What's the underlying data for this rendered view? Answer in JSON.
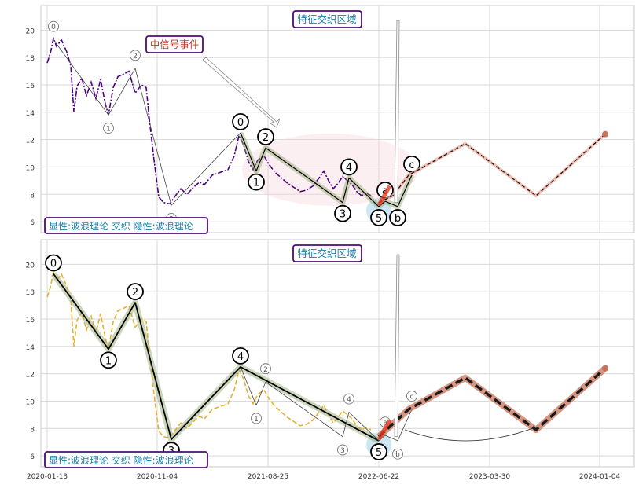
{
  "chart_data": [
    {
      "type": "line",
      "panel": "top",
      "ylim": [
        5.2,
        21.8
      ],
      "yticks": [
        6,
        8,
        10,
        12,
        14,
        16,
        18,
        20
      ],
      "grid": true,
      "series_color": "#4b0082",
      "price": [
        [
          0,
          17.6
        ],
        [
          4,
          18.3
        ],
        [
          8,
          19.4
        ],
        [
          12,
          18.8
        ],
        [
          18,
          19.3
        ],
        [
          25,
          18.4
        ],
        [
          30,
          17.4
        ],
        [
          34,
          14.0
        ],
        [
          38,
          15.9
        ],
        [
          44,
          16.5
        ],
        [
          50,
          15.2
        ],
        [
          56,
          16.2
        ],
        [
          62,
          15.0
        ],
        [
          68,
          16.4
        ],
        [
          74,
          14.6
        ],
        [
          78,
          13.8
        ],
        [
          84,
          15.8
        ],
        [
          90,
          16.6
        ],
        [
          98,
          16.8
        ],
        [
          104,
          17.0
        ],
        [
          112,
          15.4
        ],
        [
          120,
          16.0
        ],
        [
          126,
          15.8
        ],
        [
          130,
          13.5
        ],
        [
          136,
          10.5
        ],
        [
          142,
          7.8
        ],
        [
          148,
          7.4
        ],
        [
          156,
          7.3
        ],
        [
          162,
          7.8
        ],
        [
          170,
          8.4
        ],
        [
          178,
          8.0
        ],
        [
          186,
          8.5
        ],
        [
          194,
          8.9
        ],
        [
          200,
          8.7
        ],
        [
          210,
          9.4
        ],
        [
          220,
          9.6
        ],
        [
          230,
          9.8
        ],
        [
          238,
          10.8
        ],
        [
          244,
          12.3
        ],
        [
          250,
          11.6
        ],
        [
          256,
          10.4
        ],
        [
          262,
          9.8
        ],
        [
          268,
          10.5
        ],
        [
          276,
          10.8
        ],
        [
          282,
          10.2
        ],
        [
          290,
          9.6
        ],
        [
          298,
          9.2
        ],
        [
          306,
          8.8
        ],
        [
          314,
          8.5
        ],
        [
          322,
          8.2
        ],
        [
          330,
          8.3
        ],
        [
          338,
          8.6
        ],
        [
          346,
          9.2
        ],
        [
          352,
          9.7
        ],
        [
          358,
          9.0
        ],
        [
          364,
          8.4
        ],
        [
          370,
          8.8
        ],
        [
          376,
          9.3
        ],
        [
          382,
          9.0
        ],
        [
          388,
          8.7
        ],
        [
          394,
          8.2
        ],
        [
          400,
          7.9
        ],
        [
          406,
          8.1
        ],
        [
          412,
          7.9
        ]
      ],
      "projection": [
        [
          422,
          7.4
        ],
        [
          440,
          7.9
        ],
        [
          460,
          9.4
        ],
        [
          532,
          11.7
        ],
        [
          622,
          7.9
        ],
        [
          710,
          12.4
        ]
      ],
      "waves": [
        {
          "pts": [
            [
              8,
              19.3
            ],
            [
              78,
              13.8
            ],
            [
              112,
              17.2
            ],
            [
              158,
              7.2
            ],
            [
              246,
              12.5
            ]
          ],
          "labels": [
            "0",
            "1",
            "2",
            "3",
            ""
          ],
          "size": "small"
        },
        {
          "pts": [
            [
              246,
              12.5
            ],
            [
              266,
              9.7
            ],
            [
              278,
              11.4
            ],
            [
              376,
              7.4
            ],
            [
              384,
              9.2
            ],
            [
              422,
              7.1
            ]
          ],
          "labels": [
            "0",
            "1",
            "2",
            "3",
            "4",
            "5"
          ],
          "size": "big"
        },
        {
          "pts": [
            [
              422,
              7.1
            ],
            [
              430,
              7.5
            ],
            [
              446,
              7.1
            ],
            [
              464,
              9.4
            ]
          ],
          "labels": [
            "",
            "a",
            "b",
            "c"
          ],
          "size": "big"
        }
      ],
      "label_text": "显性:波浪理论 交织 隐性:波浪理论",
      "zone_label": "特征交织区域",
      "signal_label": "中信号事件"
    },
    {
      "type": "line",
      "panel": "bottom",
      "ylim": [
        5.2,
        21.8
      ],
      "yticks": [
        6,
        8,
        10,
        12,
        14,
        16,
        18,
        20
      ],
      "grid": true,
      "series_color": "#e8b02e",
      "price": [
        [
          0,
          17.6
        ],
        [
          4,
          18.3
        ],
        [
          8,
          19.4
        ],
        [
          12,
          18.8
        ],
        [
          18,
          19.3
        ],
        [
          25,
          18.4
        ],
        [
          30,
          17.4
        ],
        [
          34,
          14.0
        ],
        [
          38,
          15.9
        ],
        [
          44,
          16.5
        ],
        [
          50,
          15.2
        ],
        [
          56,
          16.2
        ],
        [
          62,
          15.0
        ],
        [
          68,
          16.4
        ],
        [
          74,
          14.6
        ],
        [
          78,
          13.8
        ],
        [
          84,
          15.8
        ],
        [
          90,
          16.6
        ],
        [
          98,
          16.8
        ],
        [
          104,
          17.0
        ],
        [
          112,
          15.4
        ],
        [
          120,
          16.0
        ],
        [
          126,
          15.8
        ],
        [
          130,
          13.5
        ],
        [
          136,
          10.5
        ],
        [
          142,
          7.8
        ],
        [
          148,
          7.4
        ],
        [
          156,
          7.3
        ],
        [
          162,
          7.8
        ],
        [
          170,
          8.4
        ],
        [
          178,
          8.0
        ],
        [
          186,
          8.5
        ],
        [
          194,
          8.9
        ],
        [
          200,
          8.7
        ],
        [
          210,
          9.4
        ],
        [
          220,
          9.6
        ],
        [
          230,
          9.8
        ],
        [
          238,
          10.8
        ],
        [
          244,
          12.3
        ],
        [
          250,
          11.6
        ],
        [
          256,
          10.4
        ],
        [
          262,
          9.8
        ],
        [
          268,
          10.5
        ],
        [
          276,
          10.8
        ],
        [
          282,
          10.2
        ],
        [
          290,
          9.6
        ],
        [
          298,
          9.2
        ],
        [
          306,
          8.8
        ],
        [
          314,
          8.5
        ],
        [
          322,
          8.2
        ],
        [
          330,
          8.3
        ],
        [
          338,
          8.6
        ],
        [
          346,
          9.2
        ],
        [
          352,
          9.7
        ],
        [
          358,
          9.0
        ],
        [
          364,
          8.4
        ],
        [
          370,
          8.8
        ],
        [
          376,
          9.3
        ],
        [
          382,
          9.0
        ],
        [
          388,
          8.7
        ],
        [
          394,
          8.2
        ],
        [
          400,
          7.9
        ],
        [
          406,
          8.1
        ],
        [
          412,
          7.9
        ]
      ],
      "projection": [
        [
          422,
          7.4
        ],
        [
          460,
          9.4
        ],
        [
          532,
          11.7
        ],
        [
          622,
          7.9
        ],
        [
          710,
          12.4
        ]
      ],
      "waves": [
        {
          "pts": [
            [
              8,
              19.3
            ],
            [
              78,
              13.8
            ],
            [
              112,
              17.2
            ],
            [
              158,
              7.2
            ],
            [
              246,
              12.5
            ],
            [
              422,
              7.1
            ]
          ],
          "labels": [
            "0",
            "1",
            "2",
            "3",
            "4",
            "5"
          ],
          "size": "big"
        },
        {
          "pts": [
            [
              246,
              12.5
            ],
            [
              266,
              9.7
            ],
            [
              278,
              11.4
            ],
            [
              376,
              7.4
            ],
            [
              384,
              9.2
            ],
            [
              422,
              7.1
            ]
          ],
          "labels": [
            "",
            "1",
            "2",
            "3",
            "4",
            ""
          ],
          "size": "small"
        },
        {
          "pts": [
            [
              422,
              7.1
            ],
            [
              430,
              7.5
            ],
            [
              446,
              7.1
            ],
            [
              464,
              9.4
            ]
          ],
          "labels": [
            "",
            "a",
            "b",
            "c"
          ],
          "size": "small"
        }
      ],
      "label_text": "显性:波浪理论 交织 隐性:波浪理论",
      "zone_label": "特征交织区域",
      "xticks": [
        {
          "x": 0,
          "label": "2020-01-13"
        },
        {
          "x": 140,
          "label": "2020-11-04"
        },
        {
          "x": 281,
          "label": "2021-08-25"
        },
        {
          "x": 422,
          "label": "2022-06-22"
        },
        {
          "x": 563,
          "label": "2023-03-30"
        },
        {
          "x": 703,
          "label": "2024-01-04"
        }
      ]
    }
  ]
}
